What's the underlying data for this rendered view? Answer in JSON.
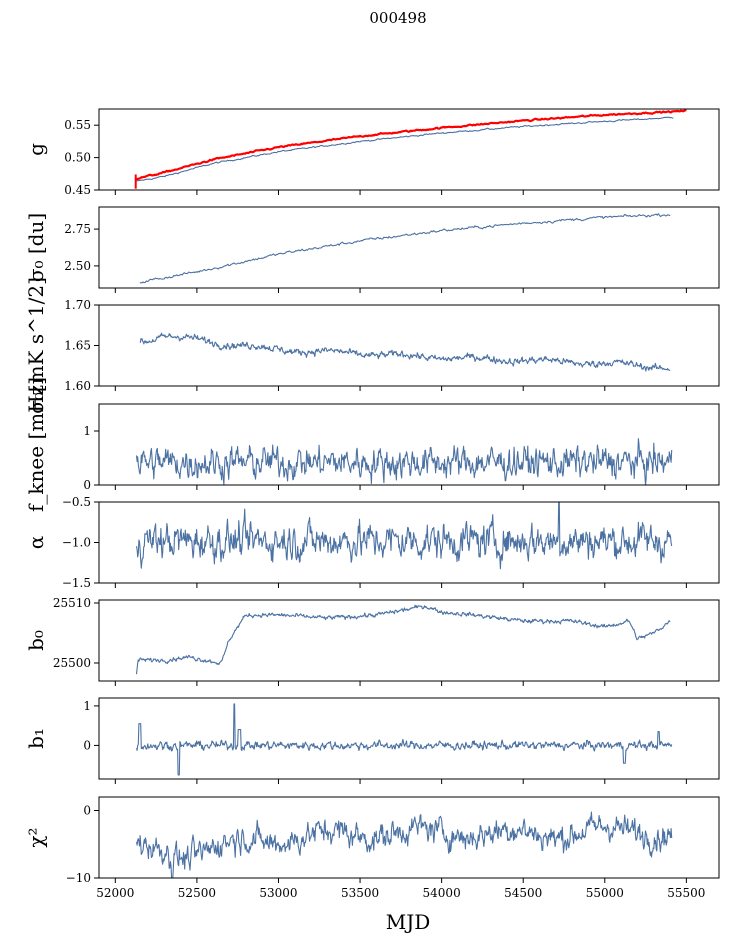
{
  "figure_title": "000498",
  "colors": {
    "main": "#4c72a3",
    "overlay": "#ff0000",
    "axis": "#000000"
  },
  "chart_data": {
    "type": "line",
    "title": "000498",
    "xlabel": "MJD",
    "xlim": [
      51900,
      55700
    ],
    "xticks": [
      52000,
      52500,
      53000,
      53500,
      54000,
      54500,
      55000,
      55500
    ],
    "xtick_labels": [
      "52000",
      "52500",
      "53000",
      "53500",
      "54000",
      "54500",
      "55000",
      "55500"
    ],
    "x_range_data": [
      52120,
      55420
    ],
    "panels": [
      {
        "name": "g",
        "ylabel": "g",
        "ylim": [
          0.45,
          0.575
        ],
        "yticks": [
          0.45,
          0.5,
          0.55
        ],
        "ytick_labels": [
          "0.45",
          "0.50",
          "0.55"
        ],
        "series": [
          {
            "name": "g (blue)",
            "color": "#4c72a3",
            "x": [
              52120,
              52300,
              52600,
              53000,
              53500,
              54000,
              54500,
              55000,
              55420
            ],
            "y": [
              0.463,
              0.471,
              0.491,
              0.509,
              0.525,
              0.538,
              0.548,
              0.556,
              0.562
            ]
          },
          {
            "name": "g (red)",
            "color": "#ff0000",
            "x": [
              52120,
              52300,
              52600,
              53000,
              53500,
              54000,
              54500,
              55000,
              55500
            ],
            "y": [
              0.467,
              0.477,
              0.497,
              0.516,
              0.533,
              0.546,
              0.557,
              0.566,
              0.572
            ]
          }
        ]
      },
      {
        "name": "sigma0-du",
        "ylabel": "σ₀ [du]",
        "ylim": [
          2.35,
          2.9
        ],
        "yticks": [
          2.5,
          2.75
        ],
        "ytick_labels": [
          "2.50",
          "2.75"
        ],
        "series": [
          {
            "name": "sigma0 du",
            "color": "#4c72a3",
            "x": [
              52150,
              52500,
              53000,
              53500,
              54000,
              54500,
              55000,
              55400
            ],
            "y": [
              2.39,
              2.46,
              2.58,
              2.67,
              2.74,
              2.79,
              2.83,
              2.85
            ]
          }
        ]
      },
      {
        "name": "sigma0-mk",
        "ylabel": "σ₀[mK s^1/2]",
        "ylim": [
          1.6,
          1.7
        ],
        "yticks": [
          1.6,
          1.65,
          1.7
        ],
        "ytick_labels": [
          "1.60",
          "1.65",
          "1.70"
        ],
        "series": [
          {
            "name": "sigma0 mK",
            "color": "#4c72a3",
            "x": [
              52150,
              52300,
              52700,
              53000,
              53500,
              54000,
              54500,
              55000,
              55400
            ],
            "y": [
              1.655,
              1.662,
              1.652,
              1.645,
              1.64,
              1.635,
              1.632,
              1.628,
              1.623
            ]
          }
        ]
      },
      {
        "name": "fknee",
        "ylabel": "f_knee [mHz]",
        "ylim": [
          0,
          1.5
        ],
        "yticks": [
          0,
          1
        ],
        "ytick_labels": [
          "0",
          "1"
        ],
        "series": [
          {
            "name": "fknee",
            "color": "#4c72a3",
            "x": [
              52130,
              55410
            ],
            "y": [
              0.42,
              0.42
            ]
          }
        ]
      },
      {
        "name": "alpha",
        "ylabel": "α",
        "ylim": [
          -1.5,
          -0.5
        ],
        "yticks": [
          -1.5,
          -1.0,
          -0.5
        ],
        "ytick_labels": [
          "−1.5",
          "−1.0",
          "−0.5"
        ],
        "series": [
          {
            "name": "alpha",
            "color": "#4c72a3",
            "x": [
              52130,
              55410
            ],
            "y": [
              -0.98,
              -0.98
            ]
          }
        ]
      },
      {
        "name": "b0",
        "ylabel": "b₀",
        "ylim": [
          25497,
          25510.5
        ],
        "yticks": [
          25500,
          25510
        ],
        "ytick_labels": [
          "25500",
          "25510"
        ],
        "series": [
          {
            "name": "b0",
            "color": "#4c72a3",
            "x": [
              52130,
              52140,
              52200,
              52300,
              52450,
              52650,
              52700,
              52800,
              53000,
              53300,
              53600,
              53900,
              54000,
              54200,
              54500,
              54800,
              55000,
              55150,
              55200,
              55300,
              55400
            ],
            "y": [
              25498,
              25500.5,
              25500.5,
              25500.5,
              25501,
              25500,
              25504,
              25508,
              25508,
              25507.5,
              25508,
              25509.5,
              25508.5,
              25508,
              25507,
              25507,
              25506,
              25507,
              25504,
              25505,
              25507
            ]
          }
        ]
      },
      {
        "name": "b1",
        "ylabel": "b₁",
        "ylim": [
          -0.85,
          1.2
        ],
        "yticks": [
          0,
          1
        ],
        "ytick_labels": [
          "0",
          "1"
        ],
        "series": [
          {
            "name": "b1",
            "color": "#4c72a3",
            "x": [
              52130,
              55410
            ],
            "y": [
              0,
              0
            ]
          }
        ]
      },
      {
        "name": "chi2",
        "ylabel": "χ²",
        "ylim": [
          -10,
          2
        ],
        "yticks": [
          -10,
          0
        ],
        "ytick_labels": [
          "−10",
          "0"
        ],
        "series": [
          {
            "name": "chi2",
            "color": "#4c72a3",
            "x": [
              52130,
              52400,
              52800,
              53400,
              54000,
              54600,
              55200,
              55410
            ],
            "y": [
              -5.5,
              -6.5,
              -4.5,
              -3.5,
              -3.2,
              -3.5,
              -2.8,
              -3.5
            ]
          }
        ]
      }
    ]
  }
}
